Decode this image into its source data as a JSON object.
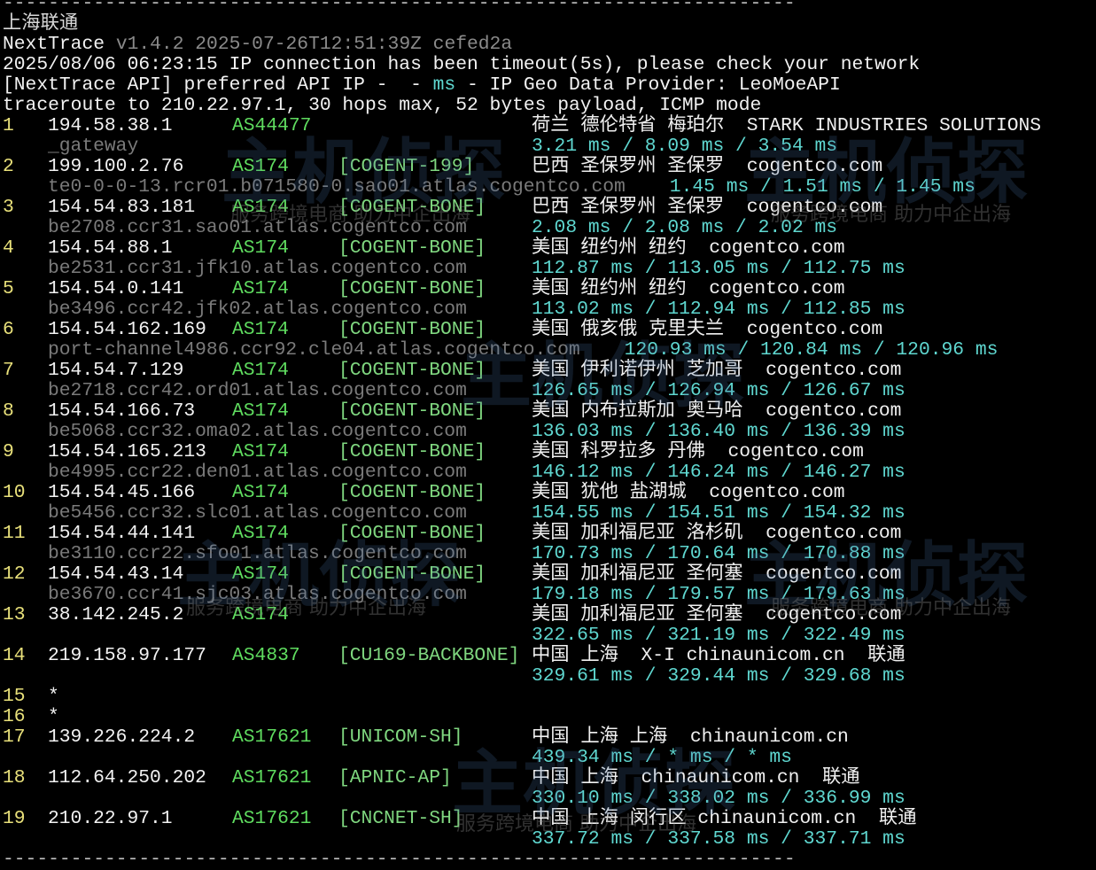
{
  "colors": {
    "hop": "#e8e07a",
    "ip": "#f2f2f2",
    "asn": "#5fdc5f",
    "tag": "#7fd67f",
    "hostname": "#7a7a7a",
    "rtt": "#5fd7d0",
    "background": "#000000"
  },
  "watermark": {
    "logo": "主机侦探",
    "slogan": "服务跨境电商 助力中企出海"
  },
  "separator": "----------------------------------------------------------------------",
  "title": "上海联通",
  "header": {
    "app_name": "NextTrace",
    "version": "v1.4.2 2025-07-26T12:51:39Z cefed2a",
    "timeout_msg": "2025/08/06 06:23:15 IP connection has been timeout(5s), please check your network",
    "api_prefix": "[NextTrace API] preferred API IP -  - ",
    "api_ms": "ms",
    "api_suffix": " - IP Geo Data Provider: LeoMoeAPI",
    "traceroute": "traceroute to 210.22.97.1, 30 hops max, 52 bytes payload, ICMP mode"
  },
  "hops": [
    {
      "n": "1",
      "ip": "194.58.38.1",
      "asn": "AS44477",
      "tag": "",
      "geo": "荷兰 德伦特省 梅珀尔  STARK INDUSTRIES SOLUTIONS",
      "host": "_gateway",
      "rtt": "3.21 ms / 8.09 ms / 3.54 ms"
    },
    {
      "n": "2",
      "ip": "199.100.2.76",
      "asn": "AS174",
      "tag": "[COGENT-199]",
      "geo": "巴西 圣保罗州 圣保罗  cogentco.com",
      "host": "te0-0-0-13.rcr01.b071580-0.sao01.atlas.cogentco.com",
      "rtt": "1.45 ms / 1.51 ms / 1.45 ms"
    },
    {
      "n": "3",
      "ip": "154.54.83.181",
      "asn": "AS174",
      "tag": "[COGENT-BONE]",
      "geo": "巴西 圣保罗州 圣保罗  cogentco.com",
      "host": "be2708.ccr31.sao01.atlas.cogentco.com",
      "rtt": "2.08 ms / 2.08 ms / 2.02 ms"
    },
    {
      "n": "4",
      "ip": "154.54.88.1",
      "asn": "AS174",
      "tag": "[COGENT-BONE]",
      "geo": "美国 纽约州 纽约  cogentco.com",
      "host": "be2531.ccr31.jfk10.atlas.cogentco.com",
      "rtt": "112.87 ms / 113.05 ms / 112.75 ms"
    },
    {
      "n": "5",
      "ip": "154.54.0.141",
      "asn": "AS174",
      "tag": "[COGENT-BONE]",
      "geo": "美国 纽约州 纽约  cogentco.com",
      "host": "be3496.ccr42.jfk02.atlas.cogentco.com",
      "rtt": "113.02 ms / 112.94 ms / 112.85 ms"
    },
    {
      "n": "6",
      "ip": "154.54.162.169",
      "asn": "AS174",
      "tag": "[COGENT-BONE]",
      "geo": "美国 俄亥俄 克里夫兰  cogentco.com",
      "host": "port-channel4986.ccr92.cle04.atlas.cogentco.com",
      "rtt": "120.93 ms / 120.84 ms / 120.96 ms"
    },
    {
      "n": "7",
      "ip": "154.54.7.129",
      "asn": "AS174",
      "tag": "[COGENT-BONE]",
      "geo": "美国 伊利诺伊州 芝加哥  cogentco.com",
      "host": "be2718.ccr42.ord01.atlas.cogentco.com",
      "rtt": "126.65 ms / 126.94 ms / 126.67 ms"
    },
    {
      "n": "8",
      "ip": "154.54.166.73",
      "asn": "AS174",
      "tag": "[COGENT-BONE]",
      "geo": "美国 内布拉斯加 奥马哈  cogentco.com",
      "host": "be5068.ccr32.oma02.atlas.cogentco.com",
      "rtt": "136.03 ms / 136.40 ms / 136.39 ms"
    },
    {
      "n": "9",
      "ip": "154.54.165.213",
      "asn": "AS174",
      "tag": "[COGENT-BONE]",
      "geo": "美国 科罗拉多 丹佛  cogentco.com",
      "host": "be4995.ccr22.den01.atlas.cogentco.com",
      "rtt": "146.12 ms / 146.24 ms / 146.27 ms"
    },
    {
      "n": "10",
      "ip": "154.54.45.166",
      "asn": "AS174",
      "tag": "[COGENT-BONE]",
      "geo": "美国 犹他 盐湖城  cogentco.com",
      "host": "be5456.ccr32.slc01.atlas.cogentco.com",
      "rtt": "154.55 ms / 154.51 ms / 154.32 ms"
    },
    {
      "n": "11",
      "ip": "154.54.44.141",
      "asn": "AS174",
      "tag": "[COGENT-BONE]",
      "geo": "美国 加利福尼亚 洛杉矶  cogentco.com",
      "host": "be3110.ccr22.sfo01.atlas.cogentco.com",
      "rtt": "170.73 ms / 170.64 ms / 170.88 ms"
    },
    {
      "n": "12",
      "ip": "154.54.43.14",
      "asn": "AS174",
      "tag": "[COGENT-BONE]",
      "geo": "美国 加利福尼亚 圣何塞  cogentco.com",
      "host": "be3670.ccr41.sjc03.atlas.cogentco.com",
      "rtt": "179.18 ms / 179.57 ms / 179.63 ms"
    },
    {
      "n": "13",
      "ip": "38.142.245.2",
      "asn": "AS174",
      "tag": "",
      "geo": "美国 加利福尼亚 圣何塞  cogentco.com",
      "host": "",
      "rtt": "322.65 ms / 321.19 ms / 322.49 ms"
    },
    {
      "n": "14",
      "ip": "219.158.97.177",
      "asn": "AS4837",
      "tag": "[CU169-BACKBONE]",
      "geo": "中国 上海  X-I chinaunicom.cn  联通",
      "host": "",
      "rtt": "329.61 ms / 329.44 ms / 329.68 ms"
    },
    {
      "n": "15",
      "ip": "*",
      "asn": "",
      "tag": "",
      "geo": "",
      "host": null,
      "rtt": null
    },
    {
      "n": "16",
      "ip": "*",
      "asn": "",
      "tag": "",
      "geo": "",
      "host": null,
      "rtt": null
    },
    {
      "n": "17",
      "ip": "139.226.224.2",
      "asn": "AS17621",
      "tag": "[UNICOM-SH]",
      "geo": "中国 上海 上海  chinaunicom.cn",
      "host": "",
      "rtt": "439.34 ms / * ms / * ms"
    },
    {
      "n": "18",
      "ip": "112.64.250.202",
      "asn": "AS17621",
      "tag": "[APNIC-AP]",
      "geo": "中国 上海  chinaunicom.cn  联通",
      "host": "",
      "rtt": "330.10 ms / 338.02 ms / 336.99 ms"
    },
    {
      "n": "19",
      "ip": "210.22.97.1",
      "asn": "AS17621",
      "tag": "[CNCNET-SH]",
      "geo": "中国 上海 闵行区 chinaunicom.cn  联通",
      "host": "",
      "rtt": "337.72 ms / 337.58 ms / 337.71 ms"
    }
  ],
  "footer_separator": "----------------------------------------------------------------------"
}
